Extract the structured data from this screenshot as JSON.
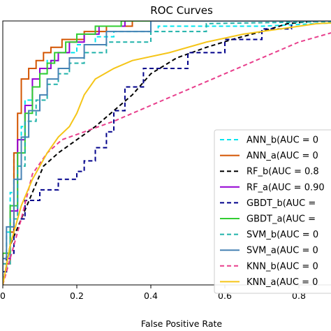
{
  "chart_data": {
    "type": "line",
    "title": "ROC Curves",
    "xlabel": "False Positive Rate",
    "ylabel": "",
    "xlim": [
      0,
      1
    ],
    "ylim": [
      0,
      1
    ],
    "xticks": [
      "0",
      "0.2",
      "0.4",
      "0.6",
      "0.8"
    ],
    "legend_placement": "lower-right",
    "series": [
      {
        "name": "ANN_b(AUC = 0",
        "color": "#00e5ee",
        "dash": "dashed",
        "x": [
          0,
          0,
          0.01,
          0.01,
          0.02,
          0.02,
          0.03,
          0.03,
          0.05,
          0.05,
          0.06,
          0.06,
          0.08,
          0.08,
          0.1,
          0.1,
          0.12,
          0.12,
          0.15,
          0.15,
          0.2,
          0.2,
          0.25,
          0.25,
          0.3,
          0.3,
          0.42,
          0.42,
          0.7,
          0.7,
          1.0
        ],
        "y": [
          0,
          0.05,
          0.05,
          0.2,
          0.2,
          0.35,
          0.35,
          0.5,
          0.5,
          0.6,
          0.6,
          0.7,
          0.7,
          0.75,
          0.75,
          0.8,
          0.8,
          0.85,
          0.85,
          0.88,
          0.88,
          0.91,
          0.91,
          0.94,
          0.94,
          0.96,
          0.96,
          0.98,
          0.98,
          0.98,
          1.0
        ]
      },
      {
        "name": "ANN_a(AUC = 0",
        "color": "#d35400",
        "dash": "solid",
        "x": [
          0,
          0,
          0.02,
          0.02,
          0.03,
          0.03,
          0.04,
          0.04,
          0.05,
          0.05,
          0.07,
          0.07,
          0.09,
          0.09,
          0.11,
          0.11,
          0.13,
          0.13,
          0.16,
          0.16,
          0.22,
          0.22,
          0.28,
          0.28,
          0.35,
          0.35,
          1.0
        ],
        "y": [
          0,
          0.08,
          0.08,
          0.2,
          0.2,
          0.5,
          0.5,
          0.65,
          0.65,
          0.78,
          0.78,
          0.82,
          0.82,
          0.85,
          0.85,
          0.88,
          0.88,
          0.9,
          0.9,
          0.93,
          0.93,
          0.96,
          0.96,
          0.98,
          0.98,
          1.0,
          1.0
        ]
      },
      {
        "name": "RF_b(AUC = 0.8",
        "color": "#000000",
        "dash": "dashed",
        "x": [
          0,
          0.02,
          0.05,
          0.08,
          0.11,
          0.15,
          0.2,
          0.25,
          0.3,
          0.35,
          0.4,
          0.47,
          0.55,
          0.62,
          0.7,
          0.77,
          0.85,
          1.0
        ],
        "y": [
          0,
          0.15,
          0.25,
          0.35,
          0.45,
          0.5,
          0.55,
          0.6,
          0.66,
          0.72,
          0.8,
          0.86,
          0.9,
          0.93,
          0.96,
          0.99,
          1.0,
          1.0
        ]
      },
      {
        "name": "RF_a(AUC = 0.90",
        "color": "#9400d3",
        "dash": "solid",
        "x": [
          0,
          0,
          0.02,
          0.02,
          0.04,
          0.04,
          0.06,
          0.06,
          0.08,
          0.08,
          0.1,
          0.1,
          0.13,
          0.13,
          0.15,
          0.15,
          0.18,
          0.18,
          0.22,
          0.22,
          0.26,
          0.26,
          0.33,
          0.33,
          0.45,
          0.45,
          1.0
        ],
        "y": [
          0,
          0.1,
          0.1,
          0.28,
          0.28,
          0.55,
          0.55,
          0.68,
          0.68,
          0.78,
          0.78,
          0.82,
          0.82,
          0.85,
          0.85,
          0.88,
          0.88,
          0.92,
          0.92,
          0.95,
          0.95,
          0.98,
          0.98,
          1.0,
          1.0,
          1.0,
          1.0
        ]
      },
      {
        "name": "GBDT_b(AUC =",
        "color": "#00008b",
        "dash": "dashed",
        "x": [
          0,
          0,
          0.01,
          0.01,
          0.03,
          0.03,
          0.06,
          0.06,
          0.1,
          0.1,
          0.15,
          0.15,
          0.2,
          0.2,
          0.22,
          0.22,
          0.25,
          0.25,
          0.28,
          0.28,
          0.3,
          0.3,
          0.33,
          0.33,
          0.38,
          0.38,
          0.5,
          0.5,
          0.6,
          0.6,
          0.7,
          0.7,
          0.78,
          0.78,
          1.0
        ],
        "y": [
          0,
          0.05,
          0.05,
          0.12,
          0.12,
          0.25,
          0.25,
          0.32,
          0.32,
          0.36,
          0.36,
          0.4,
          0.4,
          0.43,
          0.43,
          0.47,
          0.47,
          0.52,
          0.52,
          0.58,
          0.58,
          0.66,
          0.66,
          0.75,
          0.75,
          0.82,
          0.82,
          0.88,
          0.88,
          0.93,
          0.93,
          0.97,
          0.97,
          1.0,
          1.0
        ]
      },
      {
        "name": "GBDT_a(AUC =",
        "color": "#32cd32",
        "dash": "solid",
        "x": [
          0,
          0,
          0.02,
          0.02,
          0.04,
          0.04,
          0.06,
          0.06,
          0.08,
          0.08,
          0.1,
          0.1,
          0.12,
          0.12,
          0.14,
          0.14,
          0.17,
          0.17,
          0.2,
          0.2,
          0.25,
          0.25,
          0.32,
          0.32,
          1.0
        ],
        "y": [
          0,
          0.12,
          0.12,
          0.3,
          0.3,
          0.5,
          0.5,
          0.65,
          0.65,
          0.75,
          0.75,
          0.8,
          0.8,
          0.84,
          0.84,
          0.88,
          0.88,
          0.92,
          0.92,
          0.95,
          0.95,
          0.98,
          0.98,
          1.0,
          1.0
        ]
      },
      {
        "name": "SVM_b(AUC = 0",
        "color": "#20b2aa",
        "dash": "dashed",
        "x": [
          0,
          0,
          0.02,
          0.02,
          0.04,
          0.04,
          0.06,
          0.06,
          0.09,
          0.09,
          0.12,
          0.12,
          0.15,
          0.15,
          0.18,
          0.18,
          0.22,
          0.22,
          0.28,
          0.28,
          0.4,
          0.4,
          0.55,
          0.55,
          1.0
        ],
        "y": [
          0,
          0.08,
          0.08,
          0.25,
          0.25,
          0.45,
          0.45,
          0.62,
          0.62,
          0.7,
          0.7,
          0.76,
          0.76,
          0.8,
          0.8,
          0.84,
          0.84,
          0.88,
          0.88,
          0.92,
          0.92,
          0.96,
          0.96,
          0.99,
          1.0
        ]
      },
      {
        "name": "SVM_a(AUC = 0",
        "color": "#4682b4",
        "dash": "solid",
        "x": [
          0,
          0,
          0.01,
          0.01,
          0.03,
          0.03,
          0.05,
          0.05,
          0.07,
          0.07,
          0.1,
          0.1,
          0.12,
          0.12,
          0.15,
          0.15,
          0.18,
          0.18,
          0.22,
          0.22,
          0.28,
          0.28,
          0.4,
          0.4,
          1.0
        ],
        "y": [
          0,
          0.1,
          0.1,
          0.22,
          0.22,
          0.4,
          0.4,
          0.56,
          0.56,
          0.66,
          0.66,
          0.72,
          0.72,
          0.78,
          0.78,
          0.82,
          0.82,
          0.86,
          0.86,
          0.91,
          0.91,
          0.96,
          0.96,
          1.0,
          1.0
        ]
      },
      {
        "name": "KNN_b(AUC = 0",
        "color": "#e83e8c",
        "dash": "dashed",
        "x": [
          0,
          0.02,
          0.05,
          0.08,
          0.12,
          0.16,
          0.22,
          0.3,
          0.4,
          0.5,
          0.6,
          0.7,
          0.8,
          0.9,
          1.0
        ],
        "y": [
          0,
          0.1,
          0.25,
          0.42,
          0.5,
          0.55,
          0.58,
          0.62,
          0.68,
          0.74,
          0.8,
          0.86,
          0.92,
          0.96,
          1.0
        ]
      },
      {
        "name": "KNN_a(AUC = 0",
        "color": "#f5c518",
        "dash": "solid",
        "x": [
          0,
          0.02,
          0.05,
          0.08,
          0.12,
          0.15,
          0.18,
          0.2,
          0.22,
          0.25,
          0.3,
          0.35,
          0.45,
          0.55,
          0.65,
          0.75,
          0.85,
          1.0
        ],
        "y": [
          0,
          0.15,
          0.3,
          0.4,
          0.5,
          0.56,
          0.6,
          0.65,
          0.72,
          0.78,
          0.82,
          0.85,
          0.88,
          0.92,
          0.95,
          0.97,
          0.99,
          1.0
        ]
      }
    ]
  }
}
